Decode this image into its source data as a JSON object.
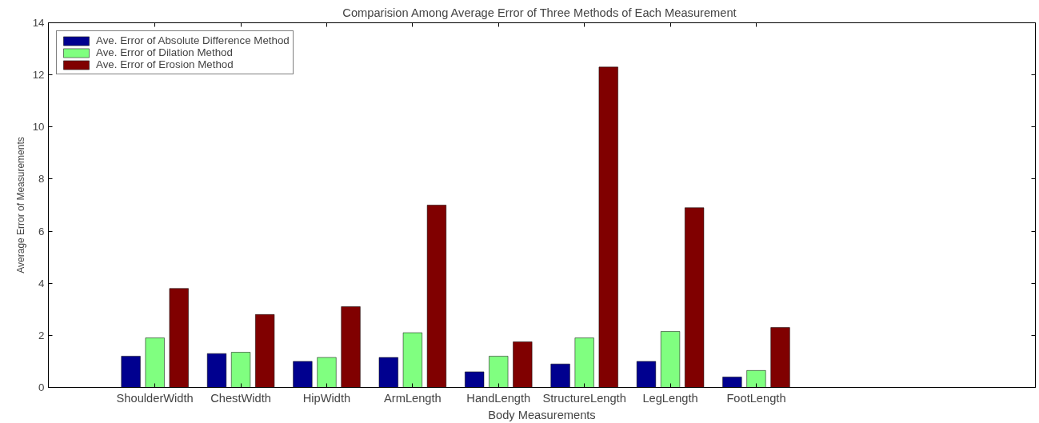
{
  "chart_data": {
    "type": "bar",
    "title": "Comparision Among  Average Error of Three Methods of Each Measurement",
    "xlabel": "Body Measurements",
    "ylabel": "Average Error of Measurements",
    "categories": [
      "ShoulderWidth",
      "ChestWidth",
      "HipWidth",
      "ArmLength",
      "HandLength",
      "StructureLength",
      "LegLength",
      "FootLength"
    ],
    "series": [
      {
        "name": "Ave. Error of Absolute Difference Method",
        "color": "#00008f",
        "values": [
          1.2,
          1.3,
          1.0,
          1.15,
          0.6,
          0.9,
          1.0,
          0.4
        ]
      },
      {
        "name": "Ave. Error of Dilation Method",
        "color": "#80ff80",
        "values": [
          1.9,
          1.35,
          1.15,
          2.1,
          1.2,
          1.9,
          2.15,
          0.65
        ]
      },
      {
        "name": "Ave. Error of Erosion Method",
        "color": "#800000",
        "values": [
          3.8,
          2.8,
          3.1,
          7.0,
          1.75,
          12.3,
          6.9,
          2.3
        ]
      }
    ],
    "ylim": [
      0,
      14
    ],
    "yticks": [
      0,
      2,
      4,
      6,
      8,
      10,
      12,
      14
    ],
    "grid": false,
    "legend": "top left"
  }
}
